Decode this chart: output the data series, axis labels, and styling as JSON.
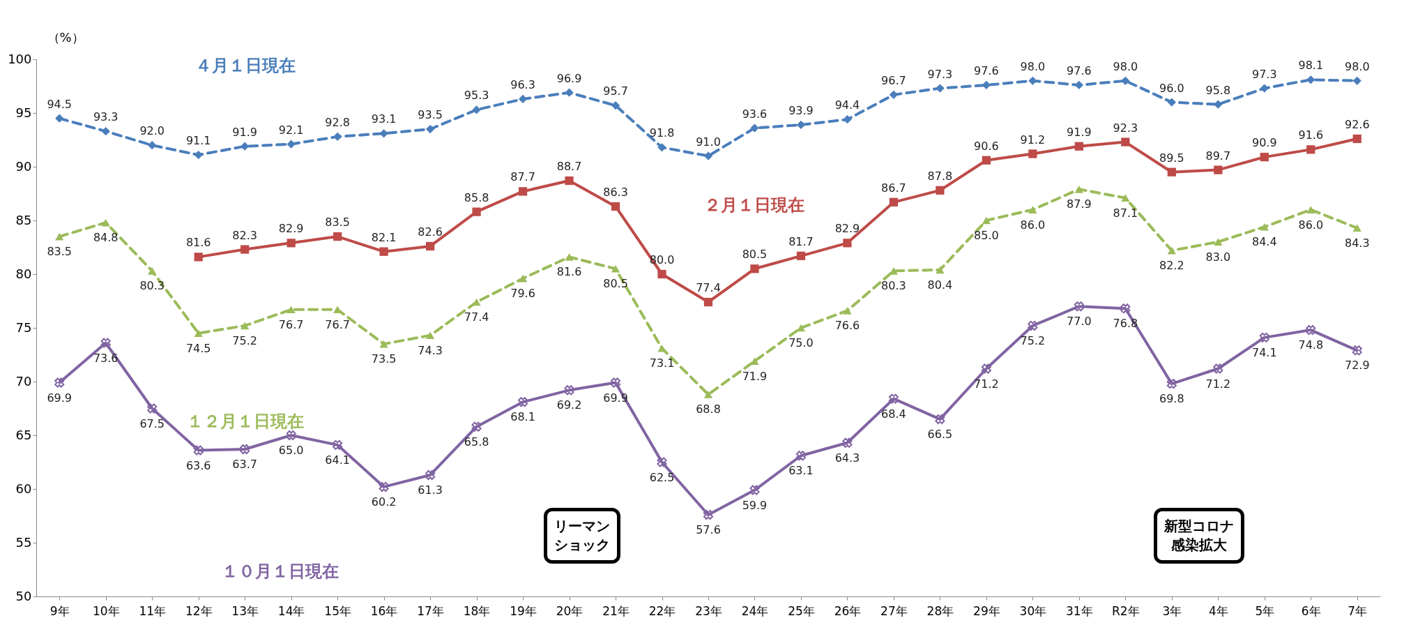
{
  "chart_data": {
    "type": "line",
    "ylabel": "（%）",
    "categories": [
      "9年",
      "10年",
      "11年",
      "12年",
      "13年",
      "14年",
      "15年",
      "16年",
      "17年",
      "18年",
      "19年",
      "20年",
      "21年",
      "22年",
      "23年",
      "24年",
      "25年",
      "26年",
      "27年",
      "28年",
      "29年",
      "30年",
      "31年",
      "R2年",
      "3年",
      "4年",
      "5年",
      "6年",
      "7年"
    ],
    "series": [
      {
        "name": "４月１日現在",
        "color": "#4a7ebb",
        "line_style": "dashed",
        "marker": "diamond",
        "values": [
          94.5,
          93.3,
          92.0,
          91.1,
          91.9,
          92.1,
          92.8,
          93.1,
          93.5,
          95.3,
          96.3,
          96.9,
          95.7,
          91.8,
          91.0,
          93.6,
          93.9,
          94.4,
          96.7,
          97.3,
          97.6,
          98.0,
          97.6,
          98.0,
          96.0,
          95.8,
          97.3,
          98.1,
          98.0
        ],
        "value_labels": [
          "94.5",
          "93.3",
          "92.0",
          "91.1",
          "91.9",
          "92.1",
          "92.8",
          "93.1",
          "93.5",
          "95.3",
          "96.3",
          "96.9",
          "95.7",
          "91.8",
          "91.0",
          "93.6",
          "93.9",
          "94.4",
          "96.7",
          "97.3",
          "97.6",
          "98.0",
          "97.6",
          "98.0",
          "96.0",
          "95.8",
          "97.3",
          "98.1",
          "98.0"
        ]
      },
      {
        "name": "２月１日現在",
        "color": "#be4b48",
        "line_style": "solid",
        "marker": "square",
        "values": [
          null,
          null,
          null,
          81.6,
          82.3,
          82.9,
          83.5,
          82.1,
          82.6,
          85.8,
          87.7,
          88.7,
          86.3,
          80.0,
          77.4,
          80.5,
          81.7,
          82.9,
          86.7,
          87.8,
          90.6,
          91.2,
          91.9,
          92.3,
          89.5,
          89.7,
          90.9,
          91.6,
          92.6
        ],
        "value_labels": [
          null,
          null,
          null,
          "81.6",
          "82.3",
          "82.9",
          "83.5",
          "82.1",
          "82.6",
          "85.8",
          "87.7",
          "88.7",
          "86.3",
          "80.0",
          "77.4",
          "80.5",
          "81.7",
          "82.9",
          "86.7",
          "87.8",
          "90.6",
          "91.2",
          "91.9",
          "92.3",
          "89.5",
          "89.7",
          "90.9",
          "91.6",
          "92.6"
        ]
      },
      {
        "name": "１２月１日現在",
        "color": "#9bbb59",
        "line_style": "dashed",
        "marker": "triangle",
        "values": [
          83.5,
          84.8,
          80.3,
          74.5,
          75.2,
          76.7,
          76.7,
          73.5,
          74.3,
          77.4,
          79.6,
          81.6,
          80.5,
          73.1,
          68.8,
          71.9,
          75.0,
          76.6,
          80.3,
          80.4,
          85.0,
          86.0,
          87.9,
          87.1,
          82.2,
          83.0,
          84.4,
          86.0,
          84.3
        ],
        "value_labels": [
          "83.5",
          "84.8",
          "80.3",
          "74.5",
          "75.2",
          "76.7",
          "76.7",
          "73.5",
          "74.3",
          "77.4",
          "79.6",
          "81.6",
          "80.5",
          "73.1",
          "68.8",
          "71.9",
          "75.0",
          "76.6",
          "80.3",
          "80.4",
          "85.0",
          "86.0",
          "87.9",
          "87.1",
          "82.2",
          "83.0",
          "84.4",
          "86.0",
          "84.3"
        ]
      },
      {
        "name": "１０月１日現在",
        "color": "#8064a2",
        "line_style": "solid",
        "marker": "cross",
        "values": [
          69.9,
          73.6,
          67.5,
          63.6,
          63.7,
          65.0,
          64.1,
          60.2,
          61.3,
          65.8,
          68.1,
          69.2,
          69.9,
          62.5,
          57.6,
          59.9,
          63.1,
          64.3,
          68.4,
          66.5,
          71.2,
          75.2,
          77.0,
          76.8,
          69.8,
          71.2,
          74.1,
          74.8,
          72.9
        ],
        "value_labels": [
          "69.9",
          "73.6",
          "67.5",
          "63.6",
          "63.7",
          "65.0",
          "64.1",
          "60.2",
          "61.3",
          "65.8",
          "68.1",
          "69.2",
          "69.9",
          "62.5",
          "57.6",
          "59.9",
          "63.1",
          "64.3",
          "68.4",
          "66.5",
          "71.2",
          "75.2",
          "77.0",
          "76.8",
          "69.8",
          "71.2",
          "74.1",
          "74.8",
          "72.9"
        ]
      }
    ],
    "ylim": [
      50,
      100
    ],
    "yticks": [
      50,
      55,
      60,
      65,
      70,
      75,
      80,
      85,
      90,
      95,
      100
    ],
    "annotations": [
      "リーマンショック",
      "新型コロナ感染拡大"
    ]
  }
}
